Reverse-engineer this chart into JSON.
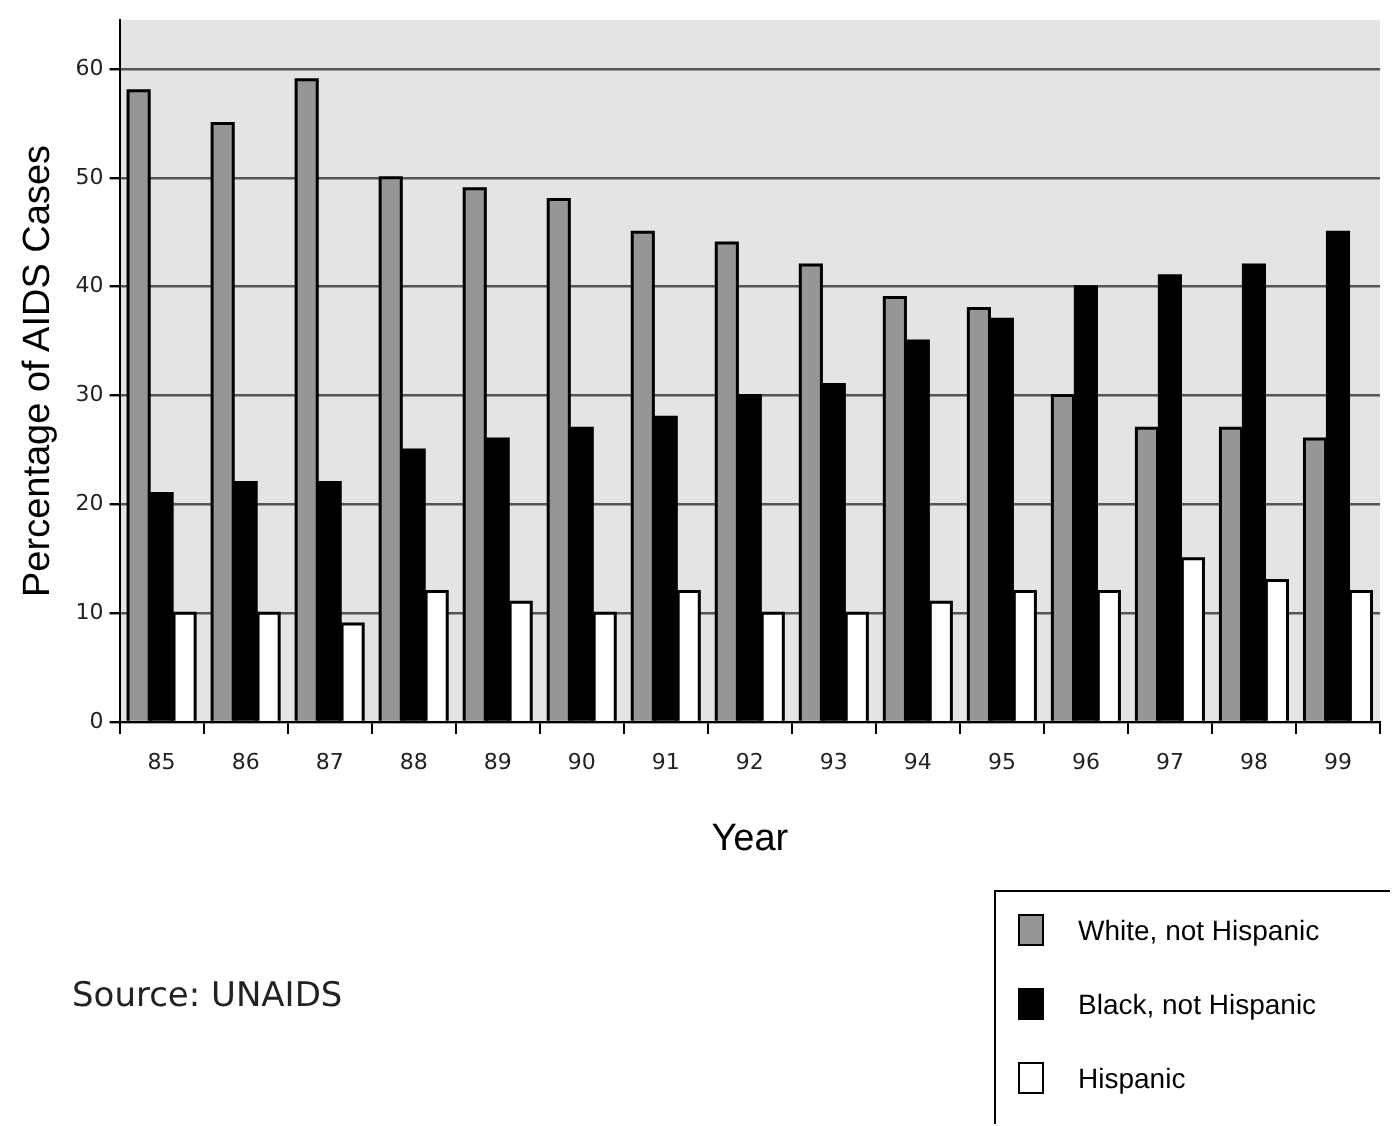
{
  "chart_data": {
    "type": "bar",
    "xlabel": "Year",
    "ylabel": "Percentage of AIDS Cases",
    "categories": [
      "85",
      "86",
      "87",
      "88",
      "89",
      "90",
      "91",
      "92",
      "93",
      "94",
      "95",
      "96",
      "97",
      "98",
      "99"
    ],
    "series": [
      {
        "name": "White, not Hispanic",
        "color": "#969696",
        "values": [
          58,
          55,
          59,
          50,
          49,
          48,
          45,
          44,
          42,
          39,
          38,
          30,
          27,
          27,
          26
        ]
      },
      {
        "name": "Black, not Hispanic",
        "color": "#000000",
        "values": [
          21,
          22,
          22,
          25,
          26,
          27,
          28,
          30,
          31,
          35,
          37,
          40,
          41,
          42,
          45
        ]
      },
      {
        "name": "Hispanic",
        "color": "#ffffff",
        "values": [
          10,
          10,
          9,
          12,
          11,
          10,
          12,
          10,
          10,
          11,
          12,
          12,
          15,
          13,
          12
        ]
      }
    ],
    "ylim": [
      0,
      64.5
    ],
    "yticks": [
      0,
      10,
      20,
      30,
      40,
      50,
      60
    ],
    "grid": "y",
    "legend": "bottom right",
    "annotations": [
      "Source: UNAIDS"
    ]
  }
}
